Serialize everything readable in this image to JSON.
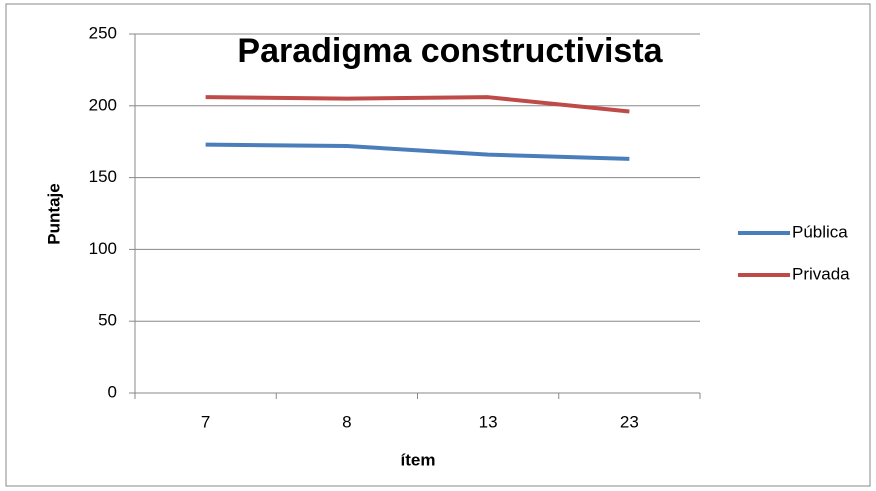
{
  "chart_data": {
    "type": "line",
    "title": "Paradigma constructivista",
    "x_label": "ítem",
    "y_label": "Puntaje",
    "categories": [
      "7",
      "8",
      "13",
      "23"
    ],
    "series": [
      {
        "name": "Pública",
        "color": "#4a7ebb",
        "values": [
          173,
          172,
          166,
          163
        ]
      },
      {
        "name": "Privada",
        "color": "#be4b48",
        "values": [
          206,
          205,
          206,
          196
        ]
      }
    ],
    "ylim": [
      0,
      250
    ],
    "yticks": [
      0,
      50,
      100,
      150,
      200,
      250
    ],
    "grid": true,
    "legend": "right"
  }
}
